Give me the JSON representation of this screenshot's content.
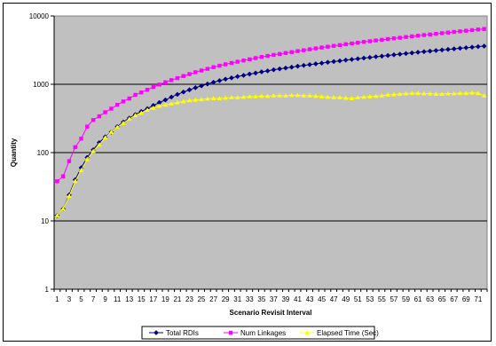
{
  "chart_data": {
    "type": "line",
    "title": "",
    "xlabel": "Scenario Revisit Interval",
    "ylabel": "Quantity",
    "yscale": "log",
    "ylim": [
      1,
      10000
    ],
    "yticks": [
      "1",
      "10",
      "100",
      "1000",
      "10000"
    ],
    "x": [
      1,
      2,
      3,
      4,
      5,
      6,
      7,
      8,
      9,
      10,
      11,
      12,
      13,
      14,
      15,
      16,
      17,
      18,
      19,
      20,
      21,
      22,
      23,
      24,
      25,
      26,
      27,
      28,
      29,
      30,
      31,
      32,
      33,
      34,
      35,
      36,
      37,
      38,
      39,
      40,
      41,
      42,
      43,
      44,
      45,
      46,
      47,
      48,
      49,
      50,
      51,
      52,
      53,
      54,
      55,
      56,
      57,
      58,
      59,
      60,
      61,
      62,
      63,
      64,
      65,
      66,
      67,
      68,
      69,
      70,
      71,
      72
    ],
    "xticks": [
      "1",
      "3",
      "5",
      "7",
      "9",
      "11",
      "13",
      "15",
      "17",
      "19",
      "21",
      "23",
      "25",
      "27",
      "29",
      "31",
      "33",
      "35",
      "37",
      "39",
      "41",
      "43",
      "45",
      "47",
      "49",
      "51",
      "53",
      "55",
      "57",
      "59",
      "61",
      "63",
      "65",
      "67",
      "69",
      "71"
    ],
    "grid": "horizontal major lines",
    "plot_background": "#c0c0c0",
    "legend_position": "bottom",
    "series": [
      {
        "name": "Total RDIs",
        "color": "#000080",
        "marker": "diamond",
        "values": [
          12,
          15,
          24,
          40,
          60,
          85,
          110,
          140,
          170,
          200,
          240,
          280,
          320,
          360,
          400,
          440,
          490,
          540,
          590,
          650,
          710,
          770,
          830,
          890,
          950,
          1010,
          1070,
          1130,
          1190,
          1240,
          1300,
          1350,
          1410,
          1460,
          1520,
          1570,
          1630,
          1680,
          1730,
          1780,
          1840,
          1890,
          1940,
          1990,
          2040,
          2100,
          2150,
          2200,
          2260,
          2310,
          2360,
          2420,
          2470,
          2530,
          2580,
          2640,
          2700,
          2760,
          2820,
          2880,
          2940,
          3000,
          3060,
          3120,
          3180,
          3240,
          3300,
          3370,
          3430,
          3490,
          3560,
          3620
        ]
      },
      {
        "name": "Num Linkages",
        "color": "#ff00ff",
        "marker": "square",
        "values": [
          38,
          45,
          75,
          120,
          160,
          240,
          300,
          340,
          390,
          440,
          500,
          560,
          620,
          700,
          760,
          830,
          910,
          990,
          1070,
          1150,
          1230,
          1320,
          1410,
          1500,
          1590,
          1680,
          1780,
          1870,
          1960,
          2050,
          2140,
          2230,
          2320,
          2420,
          2510,
          2600,
          2690,
          2780,
          2870,
          2960,
          3060,
          3150,
          3250,
          3350,
          3450,
          3550,
          3650,
          3750,
          3860,
          3960,
          4060,
          4170,
          4270,
          4380,
          4480,
          4590,
          4700,
          4800,
          4920,
          5030,
          5140,
          5260,
          5370,
          5480,
          5600,
          5720,
          5840,
          5960,
          6080,
          6200,
          6330,
          6450
        ]
      },
      {
        "name": "Elapsed Time (Sec)",
        "color": "#ffff00",
        "marker": "triangle",
        "values": [
          12,
          15,
          23,
          38,
          55,
          80,
          105,
          130,
          165,
          200,
          235,
          270,
          310,
          350,
          380,
          420,
          450,
          480,
          500,
          520,
          540,
          560,
          580,
          590,
          600,
          610,
          620,
          620,
          630,
          640,
          640,
          650,
          660,
          660,
          670,
          670,
          680,
          680,
          680,
          690,
          690,
          680,
          680,
          670,
          660,
          650,
          640,
          640,
          630,
          620,
          640,
          650,
          660,
          670,
          680,
          700,
          710,
          720,
          730,
          740,
          740,
          730,
          730,
          720,
          720,
          730,
          730,
          740,
          740,
          750,
          740,
          680
        ]
      }
    ]
  }
}
